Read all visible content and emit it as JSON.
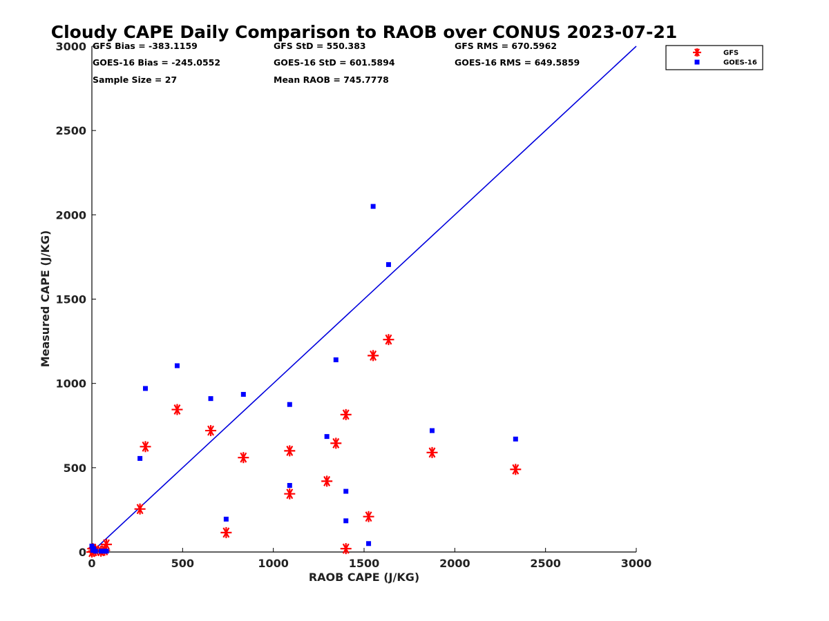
{
  "chart_data": {
    "type": "scatter",
    "title": "Cloudy CAPE Daily Comparison to RAOB over CONUS 2023-07-21",
    "xlabel": "RAOB CAPE (J/KG)",
    "ylabel": "Measured CAPE (J/KG)",
    "xlim": [
      0,
      3000
    ],
    "ylim": [
      0,
      3000
    ],
    "xticks": [
      "0",
      "500",
      "1000",
      "1500",
      "2000",
      "2500",
      "3000"
    ],
    "yticks": [
      "0",
      "500",
      "1000",
      "1500",
      "2000",
      "2500",
      "3000"
    ],
    "grid": false,
    "legend_position": "top-right, outside plot",
    "reference_line": {
      "type": "1:1",
      "color": "#0000dd",
      "points": [
        [
          0,
          0
        ],
        [
          3000,
          3000
        ]
      ]
    },
    "stats": [
      [
        "GFS Bias = -383.1159",
        "GFS StD = 550.383",
        "GFS RMS = 670.5962"
      ],
      [
        "GOES-16 Bias = -245.0552",
        "GOES-16 StD = 601.5894",
        "GOES-16 RMS = 649.5859"
      ],
      [
        "Sample Size = 27",
        "Mean RAOB = 745.7778",
        ""
      ]
    ],
    "series": [
      {
        "name": "GFS",
        "marker": "asterisk",
        "color": "#ff0000",
        "points": [
          [
            0,
            0
          ],
          [
            5,
            20
          ],
          [
            10,
            5
          ],
          [
            20,
            10
          ],
          [
            50,
            5
          ],
          [
            70,
            10
          ],
          [
            80,
            45
          ],
          [
            265,
            255
          ],
          [
            295,
            625
          ],
          [
            470,
            845
          ],
          [
            655,
            720
          ],
          [
            740,
            115
          ],
          [
            835,
            560
          ],
          [
            1090,
            345
          ],
          [
            1090,
            600
          ],
          [
            1295,
            420
          ],
          [
            1345,
            645
          ],
          [
            1400,
            815
          ],
          [
            1400,
            20
          ],
          [
            1525,
            210
          ],
          [
            1550,
            1165
          ],
          [
            1635,
            1260
          ],
          [
            1875,
            590
          ],
          [
            2335,
            490
          ]
        ]
      },
      {
        "name": "GOES-16",
        "marker": "square",
        "color": "#0000ff",
        "points": [
          [
            0,
            35
          ],
          [
            5,
            10
          ],
          [
            10,
            20
          ],
          [
            20,
            5
          ],
          [
            50,
            5
          ],
          [
            70,
            5
          ],
          [
            80,
            5
          ],
          [
            265,
            555
          ],
          [
            295,
            970
          ],
          [
            470,
            1105
          ],
          [
            655,
            910
          ],
          [
            740,
            195
          ],
          [
            835,
            935
          ],
          [
            1090,
            875
          ],
          [
            1090,
            395
          ],
          [
            1295,
            685
          ],
          [
            1345,
            1140
          ],
          [
            1400,
            360
          ],
          [
            1400,
            185
          ],
          [
            1525,
            50
          ],
          [
            1550,
            2050
          ],
          [
            1635,
            1705
          ],
          [
            1875,
            720
          ],
          [
            2335,
            670
          ]
        ]
      }
    ]
  }
}
